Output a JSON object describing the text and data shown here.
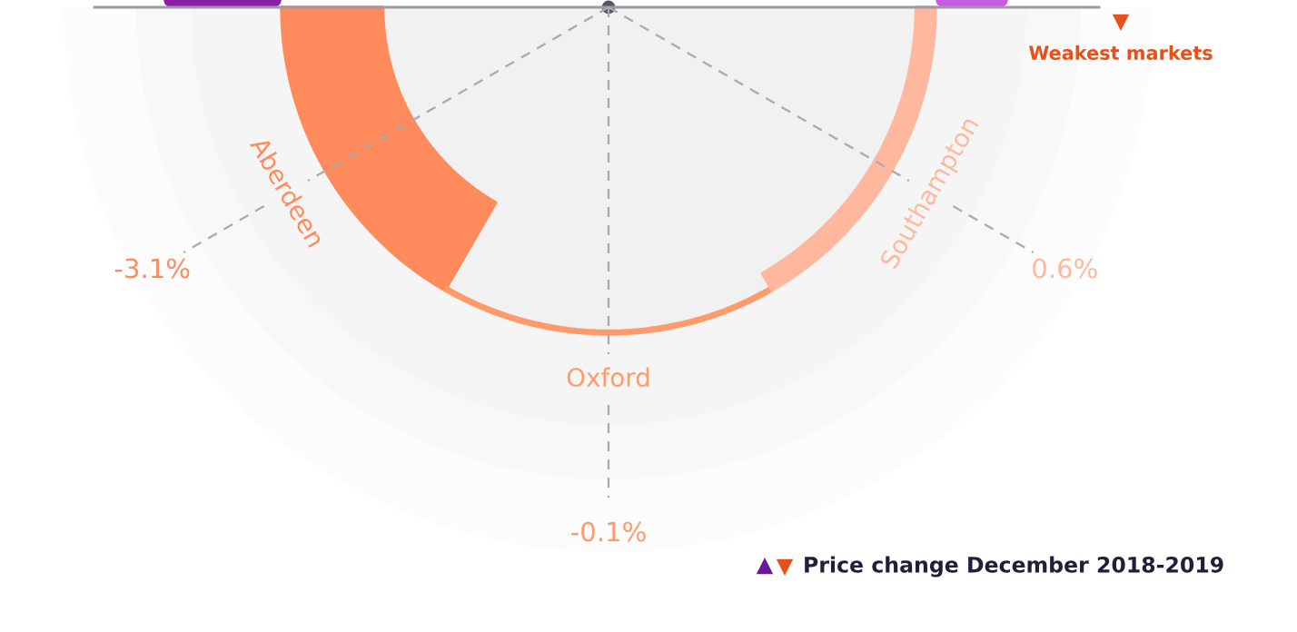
{
  "chart_data": {
    "type": "other",
    "categories": [
      "Aberdeen",
      "Oxford",
      "Southampton"
    ],
    "values": [
      -3.1,
      -0.1,
      0.6
    ],
    "value_labels": [
      "-3.1%",
      "-0.1%",
      "0.6%"
    ],
    "colors": [
      "#ff8a5c",
      "#ff9a6a",
      "#ffb89e"
    ],
    "annotations": [
      "Weakest markets",
      "Price change December 2018-2019"
    ]
  }
}
